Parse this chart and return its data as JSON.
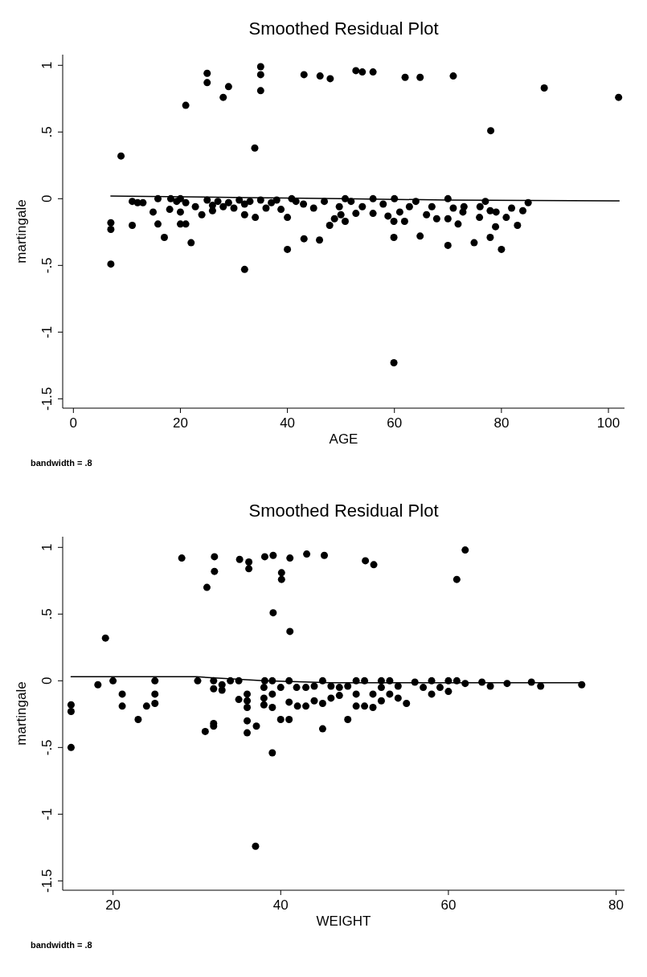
{
  "chart_data": [
    {
      "type": "scatter",
      "title": "Smoothed Residual Plot",
      "xlabel": "AGE",
      "ylabel": "martingale",
      "annotations": [
        "bandwidth = .8"
      ],
      "xlim": [
        -2,
        103
      ],
      "ylim": [
        -1.57,
        1.08
      ],
      "xticks": [
        0,
        20,
        40,
        60,
        80,
        100
      ],
      "yticks": [
        {
          "value": -1.5,
          "label": "-1.5"
        },
        {
          "value": -1,
          "label": "-1"
        },
        {
          "value": -0.5,
          "label": "-.5"
        },
        {
          "value": 0,
          "label": "0"
        },
        {
          "value": 0.5,
          "label": ".5"
        },
        {
          "value": 1,
          "label": "1"
        }
      ],
      "grid": false,
      "series": [
        {
          "marker": "circle",
          "color": "#000000",
          "x": [
            8.9,
            21,
            25,
            25,
            28,
            29,
            35,
            35,
            35,
            33.9,
            43.1,
            46.1,
            48,
            52.8,
            54,
            56,
            62,
            64.8,
            71,
            78,
            88,
            101.9,
            7,
            7,
            7,
            11,
            11,
            12,
            13,
            14.9,
            15.8,
            15.8,
            17,
            18,
            18.2,
            19.3,
            20,
            20,
            20,
            21,
            21,
            22,
            22.8,
            24,
            25,
            26,
            26,
            27,
            28,
            29,
            30,
            31,
            32,
            32,
            32,
            33,
            34,
            35,
            36,
            37,
            38,
            38.8,
            40,
            40,
            40.8,
            41.6,
            43.1,
            43,
            44.9,
            46,
            46.9,
            47.9,
            48.8,
            49.7,
            50,
            50.8,
            50.8,
            51.9,
            52.8,
            54,
            56,
            56,
            57.9,
            58.8,
            59.9,
            59.9,
            60,
            61,
            61.9,
            62.8,
            64,
            64.8,
            66,
            67,
            67.9,
            70,
            70,
            70,
            71,
            71.9,
            73,
            72.8,
            74.9,
            75.9,
            76,
            77,
            77.9,
            77.9,
            78.9,
            79,
            80,
            80.9,
            81.9,
            83,
            84,
            85,
            59.9
          ],
          "values": [
            0.32,
            0.7,
            0.94,
            0.87,
            0.76,
            0.84,
            0.99,
            0.93,
            0.81,
            0.38,
            0.93,
            0.92,
            0.9,
            0.96,
            0.95,
            0.95,
            0.91,
            0.91,
            0.92,
            0.51,
            0.83,
            0.76,
            -0.18,
            -0.23,
            -0.49,
            -0.2,
            -0.02,
            -0.03,
            -0.03,
            -0.1,
            0,
            -0.19,
            -0.29,
            -0.08,
            0,
            -0.02,
            0,
            -0.1,
            -0.19,
            -0.19,
            -0.03,
            -0.33,
            -0.06,
            -0.12,
            -0.01,
            -0.05,
            -0.09,
            -0.02,
            -0.06,
            -0.03,
            -0.07,
            -0.01,
            -0.04,
            -0.12,
            -0.53,
            -0.02,
            -0.14,
            -0.01,
            -0.07,
            -0.03,
            -0.01,
            -0.08,
            -0.14,
            -0.38,
            0,
            -0.02,
            -0.3,
            -0.04,
            -0.07,
            -0.31,
            -0.02,
            -0.2,
            -0.15,
            -0.06,
            -0.12,
            -0.17,
            0,
            -0.02,
            -0.11,
            -0.06,
            0,
            -0.11,
            -0.04,
            -0.13,
            -0.17,
            -0.29,
            0,
            -0.1,
            -0.17,
            -0.06,
            -0.02,
            -0.28,
            -0.12,
            -0.06,
            -0.15,
            0,
            -0.15,
            -0.35,
            -0.07,
            -0.19,
            -0.06,
            -0.1,
            -0.33,
            -0.14,
            -0.06,
            -0.02,
            -0.29,
            -0.09,
            -0.21,
            -0.1,
            -0.38,
            -0.14,
            -0.07,
            -0.2,
            -0.09,
            -0.03,
            -1.23
          ]
        },
        {
          "type": "line",
          "color": "#000000",
          "x": [
            7,
            30,
            50,
            70,
            85,
            102
          ],
          "values": [
            0.02,
            0.01,
            0,
            -0.01,
            -0.013,
            -0.016
          ]
        }
      ]
    },
    {
      "type": "scatter",
      "title": "Smoothed Residual Plot",
      "xlabel": "WEIGHT",
      "ylabel": "martingale",
      "annotations": [
        "bandwidth = .8"
      ],
      "xlim": [
        14,
        81
      ],
      "ylim": [
        -1.57,
        1.08
      ],
      "xticks": [
        20,
        40,
        60,
        80
      ],
      "yticks": [
        {
          "value": -1.5,
          "label": "-1.5"
        },
        {
          "value": -1,
          "label": "-1"
        },
        {
          "value": -0.5,
          "label": "-.5"
        },
        {
          "value": 0,
          "label": "0"
        },
        {
          "value": 0.5,
          "label": ".5"
        },
        {
          "value": 1,
          "label": "1"
        }
      ],
      "grid": false,
      "series": [
        {
          "marker": "circle",
          "color": "#000000",
          "x": [
            19.1,
            28.2,
            31.2,
            32.1,
            32.1,
            35.1,
            36.2,
            36.2,
            38.1,
            39.1,
            39.1,
            40.1,
            40.1,
            41.1,
            41.1,
            43.1,
            45.2,
            50.1,
            51.1,
            61,
            62,
            15,
            15,
            15,
            18.2,
            20,
            21.1,
            21.1,
            23,
            24,
            25,
            25,
            25,
            30.1,
            31,
            32,
            32,
            32,
            32,
            33,
            33,
            34,
            35,
            35,
            36,
            36,
            36,
            36,
            36,
            37.1,
            37,
            38.1,
            38,
            38,
            38,
            39,
            39,
            39,
            39,
            40,
            40,
            41,
            41,
            41,
            41.9,
            42,
            43,
            43,
            44,
            44,
            45,
            45,
            45,
            46,
            46,
            47,
            47,
            48,
            48,
            49,
            49,
            49,
            50,
            50,
            51,
            51,
            52,
            52,
            52,
            53,
            53,
            54,
            54,
            55,
            56,
            57,
            58,
            58,
            59,
            60,
            60,
            61,
            62,
            64,
            65,
            67,
            69.9,
            71,
            75.9
          ],
          "values": [
            0.32,
            0.92,
            0.7,
            0.93,
            0.82,
            0.91,
            0.89,
            0.84,
            0.93,
            0.94,
            0.51,
            0.81,
            0.76,
            0.92,
            0.37,
            0.95,
            0.94,
            0.9,
            0.87,
            0.76,
            0.98,
            -0.18,
            -0.23,
            -0.5,
            -0.03,
            0,
            -0.1,
            -0.19,
            -0.29,
            -0.19,
            0,
            -0.1,
            -0.17,
            0,
            -0.38,
            0,
            -0.06,
            -0.32,
            -0.34,
            -0.03,
            -0.07,
            0,
            0,
            -0.14,
            -0.1,
            -0.15,
            -0.2,
            -0.3,
            -0.39,
            -0.34,
            -1.24,
            0,
            -0.05,
            -0.13,
            -0.18,
            0,
            -0.1,
            -0.2,
            -0.54,
            -0.05,
            -0.29,
            0,
            -0.16,
            -0.29,
            -0.05,
            -0.19,
            -0.19,
            -0.05,
            -0.15,
            -0.04,
            0,
            -0.17,
            -0.36,
            -0.04,
            -0.13,
            -0.05,
            -0.11,
            -0.29,
            -0.04,
            0,
            -0.19,
            -0.1,
            0,
            -0.19,
            -0.1,
            -0.2,
            0,
            -0.15,
            -0.05,
            0,
            -0.1,
            -0.04,
            -0.13,
            -0.17,
            -0.01,
            -0.05,
            0,
            -0.1,
            -0.05,
            0,
            -0.08,
            0,
            -0.02,
            -0.01,
            -0.04,
            -0.02,
            -0.01,
            -0.04,
            -0.03
          ]
        },
        {
          "type": "line",
          "color": "#000000",
          "x": [
            15,
            30,
            38,
            46,
            60,
            76
          ],
          "values": [
            0.03,
            0.03,
            0,
            -0.015,
            -0.015,
            -0.015
          ]
        }
      ]
    }
  ]
}
